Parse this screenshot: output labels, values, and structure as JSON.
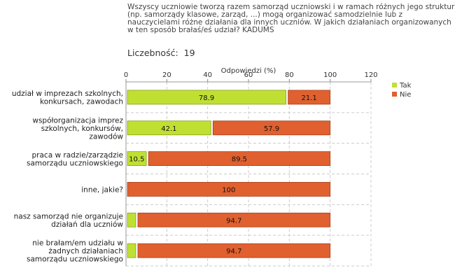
{
  "question": "Wszyscy uczniowie tworzą razem samorząd uczniowski i w ramach różnych jego struktur (np. samorządy klasowe, zarząd, ...) mogą organizować samodzielnie lub z nauczycielami różne działania dla innych uczniów. W jakich działaniach organizowanych w ten sposób brałaś/eś udział? KADUMS",
  "count_label": "Liczebność:",
  "count_value": "19",
  "colors": {
    "tak": "#bfe033",
    "nie": "#e0602f",
    "tak_border": "#8aa01e",
    "nie_border": "#a8421c"
  },
  "chart_data": {
    "type": "bar",
    "orientation": "horizontal",
    "stacked": true,
    "xlabel": "Odpowiedzi (%)",
    "xlim": [
      0,
      120
    ],
    "xticks": [
      0,
      20,
      40,
      60,
      80,
      100,
      120
    ],
    "grid": true,
    "legend_position": "top-right",
    "categories": [
      [
        "udział w imprezach szkolnych,",
        "konkursach, zawodach"
      ],
      [
        "współorganizacja imprez",
        "szkolnych, konkursów,",
        "zawodów"
      ],
      [
        "praca w radzie/zarządzie",
        "samorządu uczniowskiego"
      ],
      [
        "inne, jakie?"
      ],
      [
        "nasz samorząd nie organizuje",
        "działań dla uczniów"
      ],
      [
        "nie brałam/em udziału w",
        "żadnych działaniach",
        "samorządu uczniowskiego"
      ]
    ],
    "series": [
      {
        "name": "Tak",
        "values": [
          78.9,
          42.1,
          10.5,
          0,
          5.3,
          5.3
        ],
        "labels": [
          "78.9",
          "42.1",
          "10.5",
          "",
          "",
          ""
        ]
      },
      {
        "name": "Nie",
        "values": [
          21.1,
          57.9,
          89.5,
          100,
          94.7,
          94.7
        ],
        "labels": [
          "21.1",
          "57.9",
          "89.5",
          "100",
          "94.7",
          "94.7"
        ]
      }
    ]
  }
}
